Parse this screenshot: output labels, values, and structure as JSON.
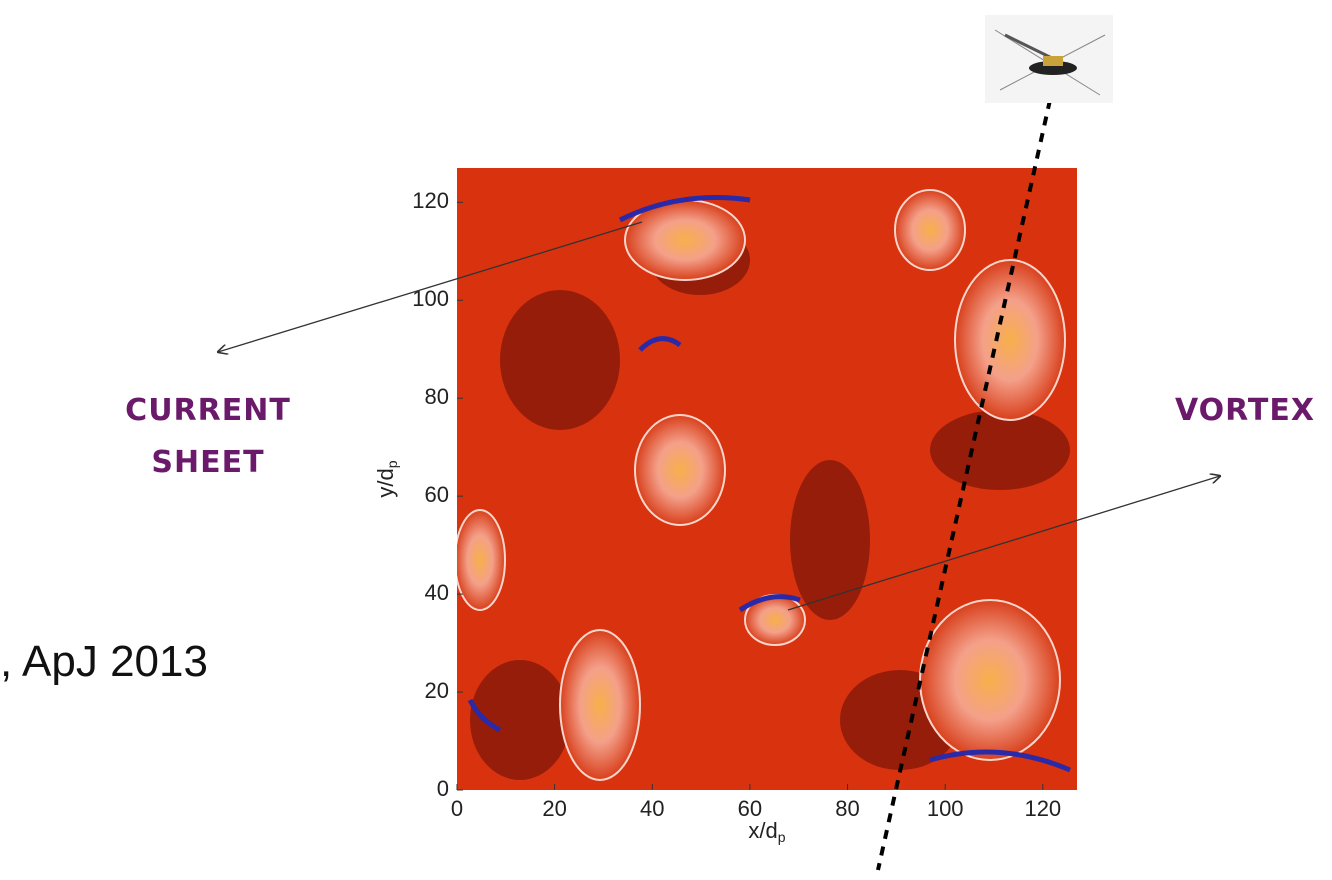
{
  "chart_data": {
    "type": "heatmap",
    "xlabel": {
      "text": "x/d",
      "sub": "p"
    },
    "ylabel": {
      "text": "y/d",
      "sub": "p"
    },
    "xlim": [
      0,
      127
    ],
    "ylim": [
      0,
      127
    ],
    "xticks": [
      0,
      20,
      40,
      60,
      80,
      100,
      120
    ],
    "yticks": [
      0,
      20,
      40,
      60,
      80,
      100,
      120
    ]
  },
  "annotations": {
    "current_sheet": [
      "CURRENT",
      "SHEET"
    ],
    "vortex": "VORTEX",
    "citation": ", ApJ 2013"
  }
}
